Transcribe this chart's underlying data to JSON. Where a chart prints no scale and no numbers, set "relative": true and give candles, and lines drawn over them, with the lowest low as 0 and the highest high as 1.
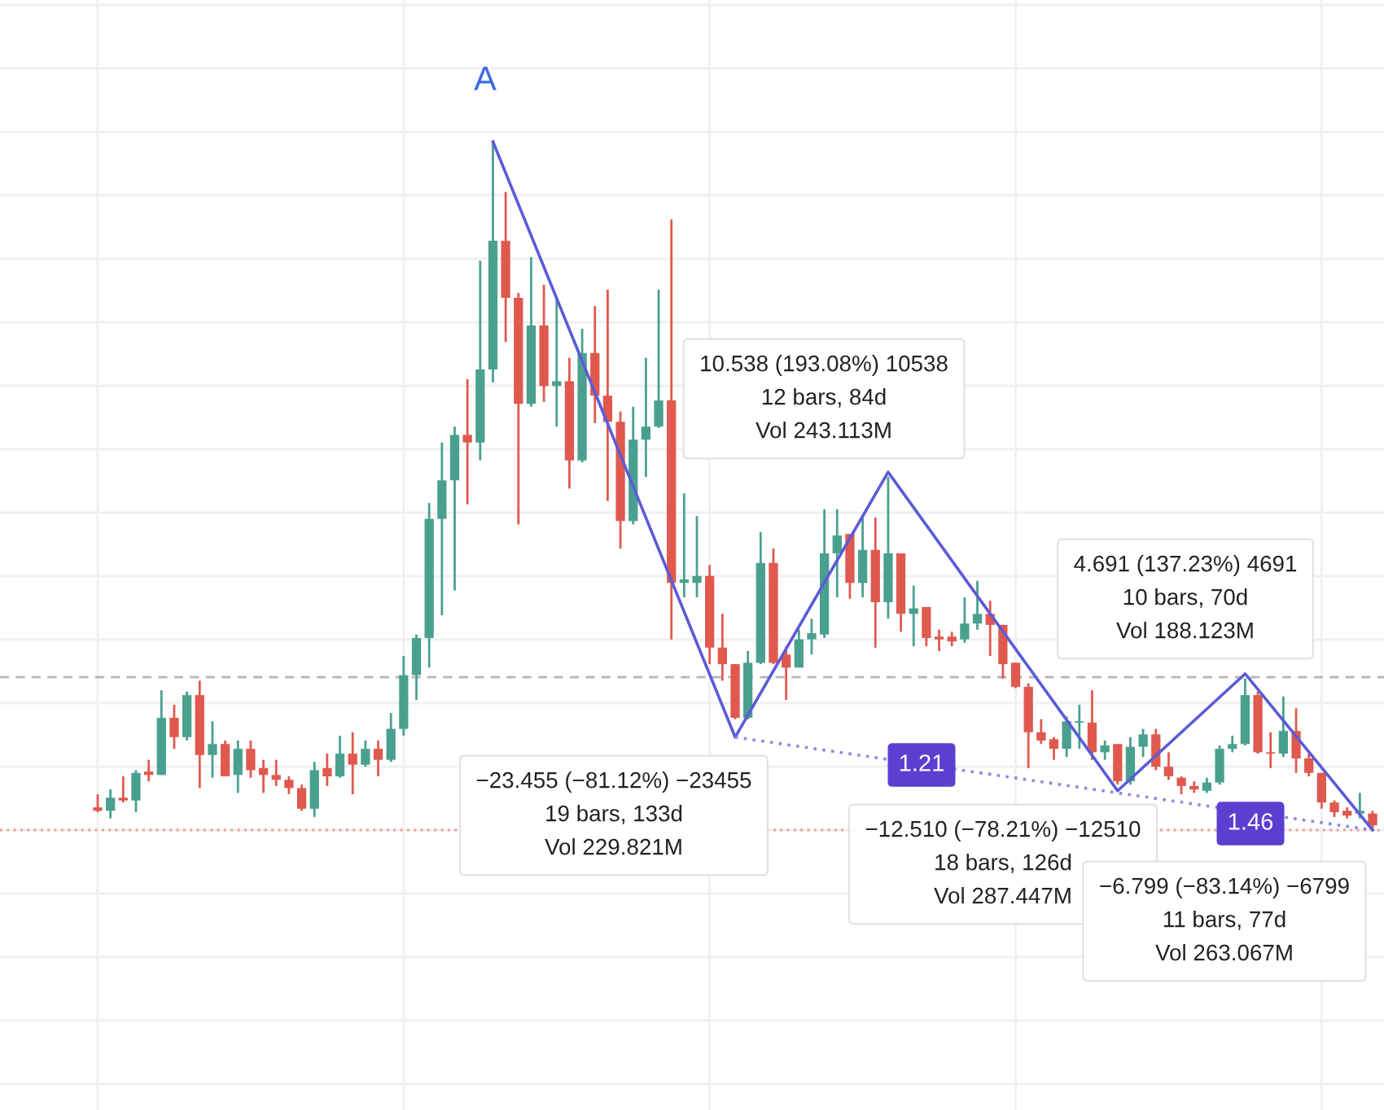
{
  "chart_data": {
    "type": "candlestick",
    "relative": true,
    "grid": true,
    "categories": [
      null,
      null,
      null,
      null,
      null,
      null,
      null,
      null,
      null,
      null,
      null,
      null,
      null,
      null,
      null,
      null,
      null,
      null,
      null,
      null,
      null,
      null,
      null,
      null,
      null,
      null,
      null,
      null,
      null,
      null,
      null,
      null,
      null,
      null,
      null,
      null,
      null,
      null,
      null,
      null,
      null,
      null,
      null,
      null,
      null,
      null,
      null,
      null,
      null,
      null,
      null,
      null,
      null,
      null,
      null,
      null,
      null,
      null,
      null,
      null,
      null,
      null,
      null,
      null,
      null,
      null,
      null,
      null,
      null,
      null,
      null,
      null,
      null,
      null,
      null,
      null,
      null,
      null,
      null,
      null,
      null,
      null,
      null,
      null,
      null,
      null,
      null,
      null,
      null,
      null,
      null,
      null,
      null,
      null,
      null,
      null,
      null,
      null,
      null,
      null,
      null
    ],
    "ohlc": [
      [
        0.033,
        0.052,
        0.026,
        0.028
      ],
      [
        0.028,
        0.059,
        0.017,
        0.047
      ],
      [
        0.047,
        0.078,
        0.04,
        0.043
      ],
      [
        0.043,
        0.087,
        0.026,
        0.083
      ],
      [
        0.085,
        0.102,
        0.071,
        0.08
      ],
      [
        0.08,
        0.203,
        0.08,
        0.163
      ],
      [
        0.163,
        0.182,
        0.118,
        0.135
      ],
      [
        0.135,
        0.201,
        0.13,
        0.196
      ],
      [
        0.196,
        0.217,
        0.061,
        0.109
      ],
      [
        0.109,
        0.158,
        0.076,
        0.125
      ],
      [
        0.125,
        0.13,
        0.078,
        0.078
      ],
      [
        0.08,
        0.13,
        0.054,
        0.118
      ],
      [
        0.118,
        0.13,
        0.076,
        0.087
      ],
      [
        0.09,
        0.102,
        0.054,
        0.08
      ],
      [
        0.08,
        0.102,
        0.064,
        0.073
      ],
      [
        0.073,
        0.078,
        0.052,
        0.061
      ],
      [
        0.061,
        0.066,
        0.028,
        0.031
      ],
      [
        0.031,
        0.099,
        0.019,
        0.087
      ],
      [
        0.09,
        0.111,
        0.064,
        0.078
      ],
      [
        0.078,
        0.137,
        0.076,
        0.111
      ],
      [
        0.111,
        0.142,
        0.052,
        0.095
      ],
      [
        0.095,
        0.13,
        0.092,
        0.118
      ],
      [
        0.118,
        0.13,
        0.078,
        0.102
      ],
      [
        0.102,
        0.17,
        0.099,
        0.147
      ],
      [
        0.147,
        0.253,
        0.137,
        0.225
      ],
      [
        0.225,
        0.284,
        0.189,
        0.279
      ],
      [
        0.279,
        0.475,
        0.236,
        0.452
      ],
      [
        0.452,
        0.563,
        0.312,
        0.508
      ],
      [
        0.508,
        0.586,
        0.348,
        0.574
      ],
      [
        0.574,
        0.655,
        0.473,
        0.563
      ],
      [
        0.563,
        0.827,
        0.537,
        0.669
      ],
      [
        0.669,
        1.0,
        0.65,
        0.856
      ],
      [
        0.856,
        0.927,
        0.709,
        0.773
      ],
      [
        0.773,
        0.78,
        0.444,
        0.619
      ],
      [
        0.619,
        0.832,
        0.615,
        0.733
      ],
      [
        0.733,
        0.792,
        0.622,
        0.645
      ],
      [
        0.645,
        0.773,
        0.586,
        0.652
      ],
      [
        0.652,
        0.686,
        0.496,
        0.537
      ],
      [
        0.537,
        0.728,
        0.534,
        0.693
      ],
      [
        0.693,
        0.761,
        0.591,
        0.631
      ],
      [
        0.631,
        0.785,
        0.478,
        0.593
      ],
      [
        0.593,
        0.608,
        0.409,
        0.449
      ],
      [
        0.449,
        0.615,
        0.444,
        0.567
      ],
      [
        0.567,
        0.686,
        0.513,
        0.586
      ],
      [
        0.586,
        0.785,
        0.584,
        0.624
      ],
      [
        0.624,
        0.887,
        0.277,
        0.359
      ],
      [
        0.359,
        0.489,
        0.338,
        0.364
      ],
      [
        0.359,
        0.456,
        0.338,
        0.369
      ],
      [
        0.369,
        0.385,
        0.241,
        0.265
      ],
      [
        0.265,
        0.314,
        0.217,
        0.241
      ],
      [
        0.241,
        0.241,
        0.161,
        0.163
      ],
      [
        0.163,
        0.26,
        0.161,
        0.243
      ],
      [
        0.243,
        0.433,
        0.241,
        0.388
      ],
      [
        0.388,
        0.409,
        0.241,
        0.243
      ],
      [
        0.255,
        0.267,
        0.189,
        0.236
      ],
      [
        0.236,
        0.291,
        0.236,
        0.277
      ],
      [
        0.277,
        0.307,
        0.255,
        0.286
      ],
      [
        0.284,
        0.466,
        0.279,
        0.402
      ],
      [
        0.402,
        0.466,
        0.338,
        0.428
      ],
      [
        0.43,
        0.43,
        0.336,
        0.359
      ],
      [
        0.359,
        0.454,
        0.338,
        0.407
      ],
      [
        0.407,
        0.454,
        0.265,
        0.331
      ],
      [
        0.331,
        0.513,
        0.307,
        0.402
      ],
      [
        0.402,
        0.402,
        0.288,
        0.314
      ],
      [
        0.314,
        0.355,
        0.267,
        0.322
      ],
      [
        0.324,
        0.324,
        0.267,
        0.279
      ],
      [
        0.281,
        0.291,
        0.26,
        0.277
      ],
      [
        0.281,
        0.288,
        0.267,
        0.274
      ],
      [
        0.277,
        0.338,
        0.272,
        0.3
      ],
      [
        0.3,
        0.362,
        0.291,
        0.314
      ],
      [
        0.314,
        0.333,
        0.253,
        0.298
      ],
      [
        0.298,
        0.298,
        0.22,
        0.241
      ],
      [
        0.243,
        0.243,
        0.206,
        0.208
      ],
      [
        0.208,
        0.213,
        0.09,
        0.142
      ],
      [
        0.142,
        0.161,
        0.125,
        0.13
      ],
      [
        0.132,
        0.135,
        0.102,
        0.118
      ],
      [
        0.118,
        0.165,
        0.106,
        0.158
      ],
      [
        0.156,
        0.182,
        0.118,
        0.158
      ],
      [
        0.156,
        0.203,
        0.102,
        0.113
      ],
      [
        0.113,
        0.13,
        0.102,
        0.123
      ],
      [
        0.125,
        0.125,
        0.066,
        0.071
      ],
      [
        0.071,
        0.135,
        0.066,
        0.121
      ],
      [
        0.121,
        0.147,
        0.106,
        0.139
      ],
      [
        0.139,
        0.147,
        0.087,
        0.092
      ],
      [
        0.092,
        0.113,
        0.073,
        0.078
      ],
      [
        0.076,
        0.078,
        0.052,
        0.064
      ],
      [
        0.064,
        0.071,
        0.054,
        0.059
      ],
      [
        0.057,
        0.076,
        0.054,
        0.069
      ],
      [
        0.069,
        0.123,
        0.066,
        0.118
      ],
      [
        0.118,
        0.137,
        0.113,
        0.125
      ],
      [
        0.125,
        0.22,
        0.123,
        0.196
      ],
      [
        0.196,
        0.201,
        0.111,
        0.113
      ],
      [
        0.113,
        0.142,
        0.09,
        0.111
      ],
      [
        0.111,
        0.194,
        0.106,
        0.144
      ],
      [
        0.144,
        0.177,
        0.083,
        0.104
      ],
      [
        0.104,
        0.111,
        0.078,
        0.083
      ],
      [
        0.083,
        0.083,
        0.031,
        0.04
      ],
      [
        0.04,
        0.043,
        0.019,
        0.026
      ],
      [
        0.028,
        0.033,
        0.017,
        0.021
      ],
      [
        0.024,
        0.054,
        0.017,
        0.028
      ],
      [
        0.024,
        0.028,
        0.0,
        0.007
      ]
    ],
    "colors": [
      "#e0594e",
      "#4aa08e",
      "#e0594e",
      "#4aa08e",
      "#e0594e",
      "#4aa08e",
      "#e0594e",
      "#4aa08e",
      "#e0594e",
      "#4aa08e",
      "#e0594e",
      "#4aa08e",
      "#e0594e",
      "#e0594e",
      "#e0594e",
      "#e0594e",
      "#e0594e",
      "#4aa08e",
      "#e0594e",
      "#4aa08e",
      "#e0594e",
      "#4aa08e",
      "#e0594e",
      "#4aa08e",
      "#4aa08e",
      "#4aa08e",
      "#4aa08e",
      "#4aa08e",
      "#4aa08e",
      "#e0594e",
      "#4aa08e",
      "#4aa08e",
      "#e0594e",
      "#e0594e",
      "#4aa08e",
      "#e0594e",
      "#4aa08e",
      "#e0594e",
      "#4aa08e",
      "#e0594e",
      "#e0594e",
      "#e0594e",
      "#4aa08e",
      "#4aa08e",
      "#4aa08e",
      "#e0594e",
      "#4aa08e",
      "#4aa08e",
      "#e0594e",
      "#e0594e",
      "#e0594e",
      "#4aa08e",
      "#4aa08e",
      "#e0594e",
      "#e0594e",
      "#4aa08e",
      "#4aa08e",
      "#4aa08e",
      "#4aa08e",
      "#e0594e",
      "#4aa08e",
      "#e0594e",
      "#4aa08e",
      "#e0594e",
      "#4aa08e",
      "#e0594e",
      "#e0594e",
      "#e0594e",
      "#4aa08e",
      "#4aa08e",
      "#e0594e",
      "#e0594e",
      "#e0594e",
      "#e0594e",
      "#e0594e",
      "#e0594e",
      "#4aa08e",
      "#4aa08e",
      "#e0594e",
      "#4aa08e",
      "#e0594e",
      "#4aa08e",
      "#4aa08e",
      "#e0594e",
      "#e0594e",
      "#e0594e",
      "#e0594e",
      "#4aa08e",
      "#4aa08e",
      "#4aa08e",
      "#4aa08e",
      "#e0594e",
      "#e0594e",
      "#4aa08e",
      "#e0594e",
      "#e0594e",
      "#e0594e",
      "#e0594e",
      "#e0594e",
      "#4aa08e",
      "#e0594e"
    ],
    "series": [
      {
        "type": "line",
        "color": "#5b5bd6",
        "line_style": "solid",
        "values": [
          null,
          null,
          null,
          null,
          null,
          null,
          null,
          null,
          null,
          null,
          null,
          null,
          null,
          null,
          null,
          null,
          null,
          null,
          null,
          null,
          null,
          null,
          null,
          null,
          null,
          null,
          null,
          null,
          null,
          null,
          null,
          1.0,
          null,
          null,
          null,
          null,
          null,
          null,
          null,
          null,
          null,
          null,
          null,
          null,
          null,
          null,
          null,
          null,
          null,
          null,
          0.135,
          null,
          null,
          null,
          null,
          null,
          null,
          null,
          null,
          null,
          null,
          null,
          0.52,
          null,
          null,
          null,
          null,
          null,
          null,
          null,
          null,
          null,
          null,
          null,
          null,
          null,
          null,
          null,
          null,
          null,
          0.057,
          null,
          null,
          null,
          null,
          null,
          null,
          null,
          null,
          null,
          0.227,
          null,
          null,
          null,
          null,
          null,
          null,
          null,
          null,
          null,
          0.0
        ]
      },
      {
        "type": "line",
        "color": "#8c8ce0",
        "line_style": "dotted",
        "values": [
          null,
          null,
          null,
          null,
          null,
          null,
          null,
          null,
          null,
          null,
          null,
          null,
          null,
          null,
          null,
          null,
          null,
          null,
          null,
          null,
          null,
          null,
          null,
          null,
          null,
          null,
          null,
          null,
          null,
          null,
          null,
          null,
          null,
          null,
          null,
          null,
          null,
          null,
          null,
          null,
          null,
          null,
          null,
          null,
          null,
          null,
          null,
          null,
          null,
          null,
          0.135,
          null,
          null,
          null,
          null,
          null,
          null,
          null,
          null,
          null,
          null,
          null,
          null,
          null,
          null,
          null,
          null,
          null,
          null,
          null,
          null,
          null,
          null,
          null,
          null,
          null,
          null,
          null,
          null,
          null,
          null,
          null,
          null,
          null,
          null,
          null,
          null,
          null,
          null,
          null,
          null,
          null,
          null,
          null,
          null,
          null,
          null,
          null,
          null,
          null,
          0.0
        ]
      }
    ],
    "ref_lines": [
      {
        "axis": "y",
        "value": 0.222,
        "color": "#b5b5b5",
        "line_style": "dashed"
      },
      {
        "axis": "y",
        "value": 0.0,
        "color": "#ef9a9a",
        "line_style": "dotted"
      }
    ],
    "annotations": [
      "A",
      "10.538 (193.08%) 10538\n12 bars, 84d\nVol 243.113M",
      "−23.455 (−81.12%) −23455\n19 bars, 133d\nVol 229.821M",
      "4.691 (137.23%) 4691\n10 bars, 70d\nVol 188.123M",
      "−12.510 (−78.21%) −12510\n18 bars, 126d\nVol 287.447M",
      "−6.799 (−83.14%) −6799\n11 bars, 77d\nVol 263.067M",
      "1.21",
      "1.46"
    ]
  }
}
